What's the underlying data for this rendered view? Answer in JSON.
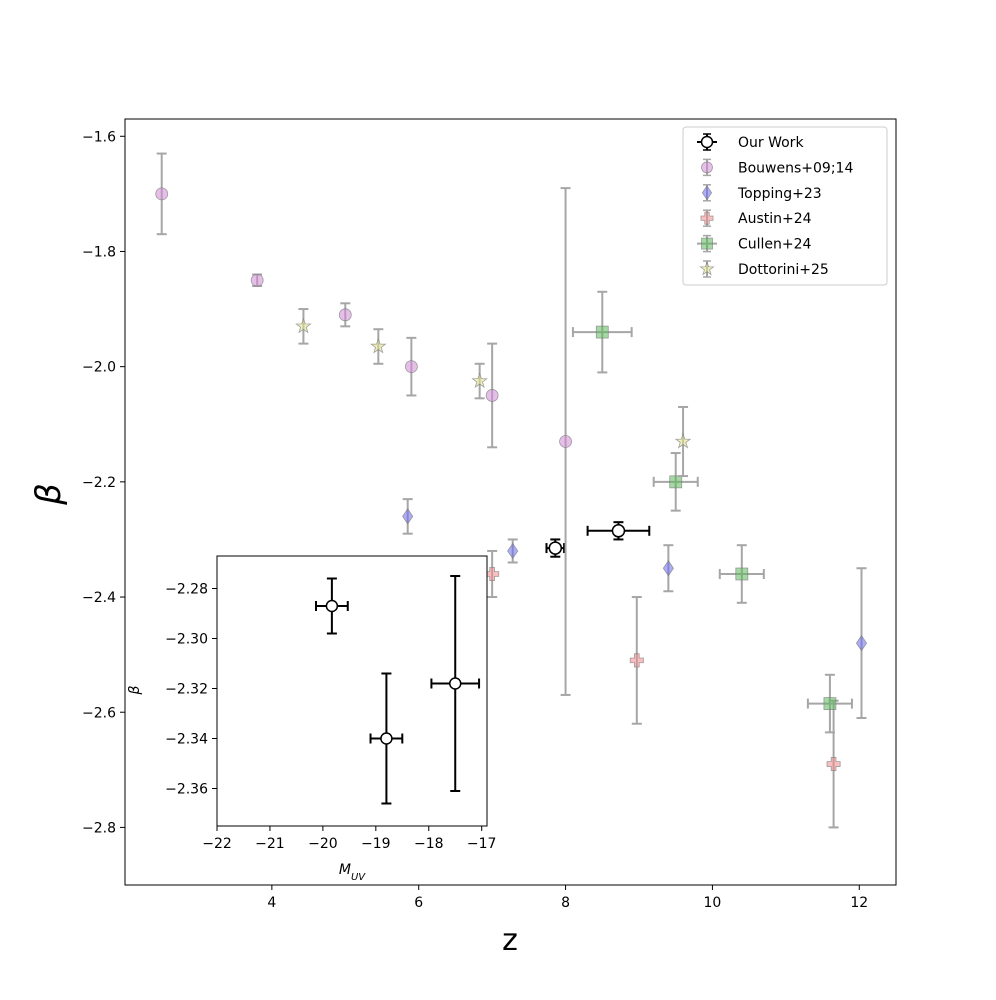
{
  "chart_data": [
    {
      "type": "scatter",
      "xlabel": "z",
      "ylabel": "β",
      "xlim": [
        2.0,
        12.5
      ],
      "ylim": [
        -2.9,
        -1.57
      ],
      "xticks": [
        4,
        6,
        8,
        10,
        12
      ],
      "yticks": [
        -1.6,
        -1.8,
        -2.0,
        -2.2,
        -2.4,
        -2.6,
        -2.8
      ],
      "xtick_labels": [
        "4",
        "6",
        "8",
        "10",
        "12"
      ],
      "ytick_labels": [
        "−1.6",
        "−1.8",
        "−2.0",
        "−2.2",
        "−2.4",
        "−2.6",
        "−2.8"
      ],
      "legend_position": "top-right",
      "series": [
        {
          "name": "Our Work",
          "color": "#000000",
          "marker": "circle-open",
          "points": [
            {
              "x": 7.86,
              "y": -2.315,
              "xerr": 0.12,
              "yerr": 0.015
            },
            {
              "x": 8.72,
              "y": -2.285,
              "xerr": 0.42,
              "yerr": 0.015
            }
          ]
        },
        {
          "name": "Bouwens+09;14",
          "color": "#d08ad6",
          "marker": "circle",
          "points": [
            {
              "x": 2.5,
              "y": -1.7,
              "xerr": 0,
              "yerr": 0.07
            },
            {
              "x": 3.8,
              "y": -1.85,
              "xerr": 0,
              "yerr": 0.01
            },
            {
              "x": 5.0,
              "y": -1.91,
              "xerr": 0,
              "yerr": 0.02
            },
            {
              "x": 5.9,
              "y": -2.0,
              "xerr": 0,
              "yerr": 0.05
            },
            {
              "x": 7.0,
              "y": -2.05,
              "xerr": 0,
              "yerr": 0.09
            },
            {
              "x": 8.0,
              "y": -2.13,
              "xerr": 0,
              "yerr": 0.44
            }
          ]
        },
        {
          "name": "Topping+23",
          "color": "#6b6bf0",
          "marker": "diamond",
          "points": [
            {
              "x": 5.85,
              "y": -2.26,
              "xerr": 0,
              "yerr": 0.03
            },
            {
              "x": 7.28,
              "y": -2.32,
              "xerr": 0,
              "yerr": 0.02
            },
            {
              "x": 9.4,
              "y": -2.35,
              "xerr": 0,
              "yerr": 0.04
            },
            {
              "x": 12.03,
              "y": -2.48,
              "xerr": 0,
              "yerr": 0.13
            }
          ]
        },
        {
          "name": "Austin+24",
          "color": "#f08a8a",
          "marker": "plus",
          "points": [
            {
              "x": 7.0,
              "y": -2.36,
              "xerr": 0,
              "yerr": 0.04
            },
            {
              "x": 8.97,
              "y": -2.51,
              "xerr": 0,
              "yerr": 0.11
            },
            {
              "x": 11.65,
              "y": -2.69,
              "xerr": 0,
              "yerr": 0.11
            }
          ]
        },
        {
          "name": "Cullen+24",
          "color": "#5cb85c",
          "marker": "square",
          "points": [
            {
              "x": 8.5,
              "y": -1.94,
              "xerr": 0.4,
              "yerr": 0.07
            },
            {
              "x": 9.5,
              "y": -2.2,
              "xerr": 0.3,
              "yerr": 0.05
            },
            {
              "x": 10.4,
              "y": -2.36,
              "xerr": 0.3,
              "yerr": 0.05
            },
            {
              "x": 11.6,
              "y": -2.585,
              "xerr": 0.3,
              "yerr": 0.05
            }
          ]
        },
        {
          "name": "Dottorini+25",
          "color": "#e0e08a",
          "marker": "star",
          "points": [
            {
              "x": 4.43,
              "y": -1.93,
              "xerr": 0,
              "yerr": 0.03
            },
            {
              "x": 5.45,
              "y": -1.965,
              "xerr": 0,
              "yerr": 0.03
            },
            {
              "x": 6.83,
              "y": -2.025,
              "xerr": 0,
              "yerr": 0.03
            },
            {
              "x": 9.6,
              "y": -2.13,
              "xerr": 0,
              "yerr": 0.06
            }
          ]
        }
      ]
    },
    {
      "type": "scatter",
      "xlabel": "M_UV",
      "ylabel": "β",
      "xlim": [
        -22.0,
        -16.9
      ],
      "ylim": [
        -2.375,
        -2.267
      ],
      "xticks": [
        -22,
        -21,
        -20,
        -19,
        -18,
        -17
      ],
      "yticks": [
        -2.28,
        -2.3,
        -2.32,
        -2.34,
        -2.36
      ],
      "xtick_labels": [
        "−22",
        "−21",
        "−20",
        "−19",
        "−18",
        "−17"
      ],
      "ytick_labels": [
        "−2.28",
        "−2.30",
        "−2.32",
        "−2.34",
        "−2.36"
      ],
      "series": [
        {
          "name": "Our Work",
          "color": "#000000",
          "marker": "circle-open",
          "points": [
            {
              "x": -19.83,
              "y": -2.287,
              "xerr": 0.3,
              "yerr": 0.011
            },
            {
              "x": -18.8,
              "y": -2.34,
              "xerr": 0.3,
              "yerr": 0.026
            },
            {
              "x": -17.5,
              "y": -2.318,
              "xerr": 0.45,
              "yerr": 0.043
            }
          ]
        }
      ]
    }
  ]
}
